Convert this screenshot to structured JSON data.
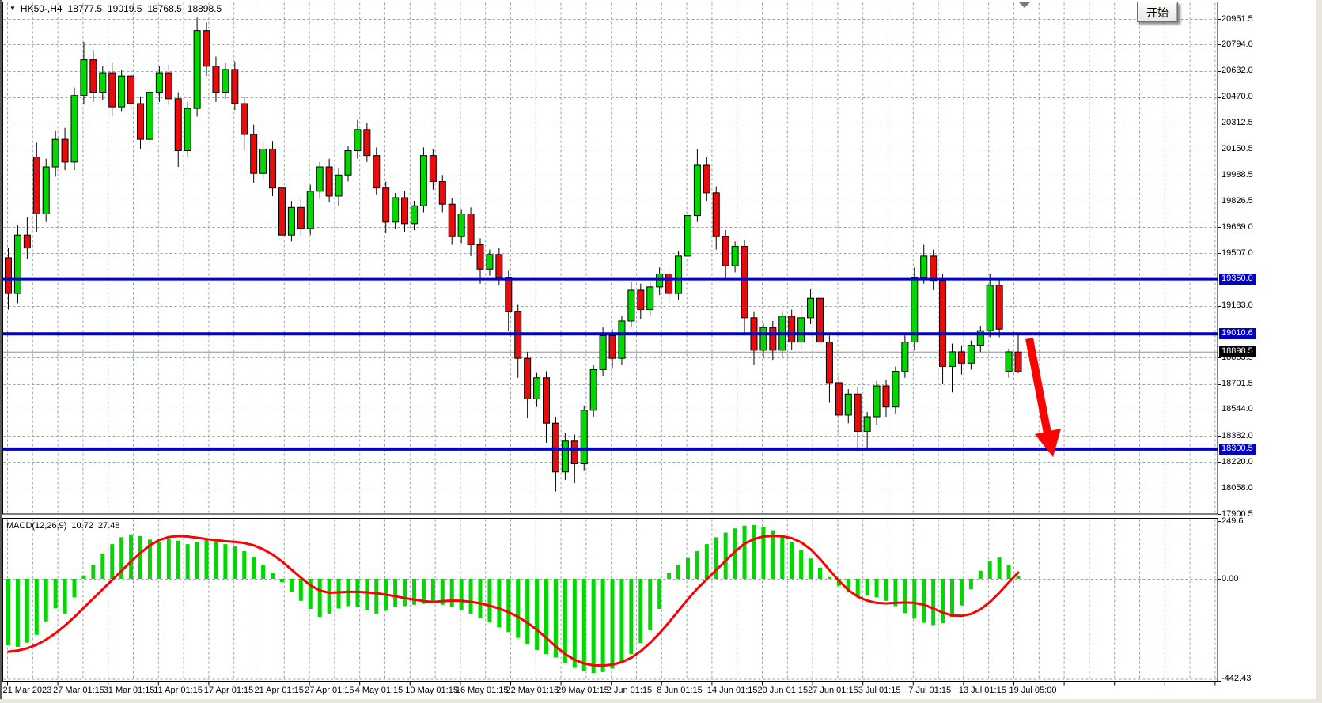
{
  "window": {
    "symbol_period": "HK50-,H4",
    "ohlc": {
      "open": "18777.5",
      "high": "19019.5",
      "low": "18768.5",
      "close": "18898.5"
    }
  },
  "start_button": {
    "label": "开始"
  },
  "colors": {
    "bull": "#00d800",
    "bear": "#e80c0c",
    "wick": "#000000",
    "grid": "#93a1b1",
    "hline": "#0000c8",
    "hline_badge": "#0000c0",
    "signal": "#fe0000",
    "histogram": "#00d800",
    "arrow": "#fb0203",
    "current_line": "#909090",
    "current_badge": "#000000",
    "marker": "#6b7b8d",
    "border": "#000000"
  },
  "price_axis": {
    "labels": [
      "20951.5",
      "20794.0",
      "20632.0",
      "20470.0",
      "20312.5",
      "20150.5",
      "19988.5",
      "19826.5",
      "19669.0",
      "19507.0",
      "19183.0",
      "18863.5",
      "18701.5",
      "18544.0",
      "18382.0",
      "18220.0",
      "18058.0",
      "17900.5"
    ]
  },
  "macd_axis": {
    "top": "249.6",
    "zero": "0.00",
    "bottom": "-442.43"
  },
  "x_axis": {
    "labels": [
      "21 Mar 2023",
      "27 Mar 01:15",
      "31 Mar 01:15",
      "11 Apr 01:15",
      "17 Apr 01:15",
      "21 Apr 01:15",
      "27 Apr 01:15",
      "4 May 01:15",
      "10 May 01:15",
      "16 May 01:15",
      "22 May 01:15",
      "29 May 01:15",
      "2 Jun 01:15",
      "8 Jun 01:15",
      "14 Jun 01:15",
      "20 Jun 01:15",
      "27 Jun 01:15",
      "3 Jul 01:15",
      "7 Jul 01:15",
      "13 Jul 01:15",
      "19 Jul 05:00"
    ]
  },
  "chart_data": [
    {
      "type": "candlestick",
      "title": "HK50-,H4",
      "ylim": [
        17900.5,
        20951.5
      ],
      "grid": true,
      "hlines": [
        {
          "price": 19350.0,
          "label": "19350.0"
        },
        {
          "price": 19010.6,
          "label": "19010.6"
        },
        {
          "price": 18300.5,
          "label": "18300.5"
        }
      ],
      "current_price": {
        "price": 18898.5,
        "label": "18898.5"
      },
      "last_bar_ohlc": [
        18777.5,
        19019.5,
        18768.5,
        18898.5
      ],
      "candles": [
        [
          19480,
          19540,
          19160,
          19260
        ],
        [
          19260,
          19680,
          19200,
          19620
        ],
        [
          19620,
          19730,
          19470,
          19540
        ],
        [
          20100,
          20190,
          19640,
          19750
        ],
        [
          19750,
          20090,
          19700,
          20040
        ],
        [
          20040,
          20260,
          19980,
          20210
        ],
        [
          20210,
          20280,
          20020,
          20070
        ],
        [
          20070,
          20530,
          20020,
          20480
        ],
        [
          20480,
          20810,
          20430,
          20700
        ],
        [
          20700,
          20760,
          20440,
          20500
        ],
        [
          20500,
          20660,
          20450,
          20620
        ],
        [
          20620,
          20680,
          20350,
          20410
        ],
        [
          20410,
          20640,
          20380,
          20600
        ],
        [
          20600,
          20650,
          20380,
          20430
        ],
        [
          20430,
          20470,
          20150,
          20210
        ],
        [
          20210,
          20540,
          20180,
          20500
        ],
        [
          20500,
          20660,
          20440,
          20620
        ],
        [
          20620,
          20670,
          20420,
          20460
        ],
        [
          20460,
          20500,
          20040,
          20140
        ],
        [
          20140,
          20440,
          20100,
          20400
        ],
        [
          20400,
          20960,
          20350,
          20880
        ],
        [
          20880,
          20930,
          20600,
          20660
        ],
        [
          20660,
          20720,
          20440,
          20500
        ],
        [
          20500,
          20680,
          20460,
          20640
        ],
        [
          20640,
          20690,
          20390,
          20430
        ],
        [
          20430,
          20470,
          20140,
          20240
        ],
        [
          20240,
          20300,
          19940,
          20000
        ],
        [
          20000,
          20190,
          19960,
          20150
        ],
        [
          20150,
          20200,
          19860,
          19910
        ],
        [
          19910,
          19950,
          19550,
          19620
        ],
        [
          19620,
          19830,
          19580,
          19790
        ],
        [
          19790,
          19840,
          19610,
          19660
        ],
        [
          19660,
          19930,
          19620,
          19890
        ],
        [
          19890,
          20070,
          19850,
          20040
        ],
        [
          20040,
          20090,
          19820,
          19860
        ],
        [
          19860,
          20030,
          19800,
          19990
        ],
        [
          19990,
          20170,
          19950,
          20140
        ],
        [
          20140,
          20330,
          20090,
          20270
        ],
        [
          20270,
          20310,
          20070,
          20110
        ],
        [
          20110,
          20160,
          19870,
          19910
        ],
        [
          19910,
          19950,
          19630,
          19700
        ],
        [
          19700,
          19880,
          19660,
          19850
        ],
        [
          19850,
          19890,
          19640,
          19690
        ],
        [
          19690,
          19830,
          19650,
          19800
        ],
        [
          19800,
          20160,
          19760,
          20110
        ],
        [
          20110,
          20150,
          19900,
          19950
        ],
        [
          19950,
          19990,
          19760,
          19810
        ],
        [
          19810,
          19850,
          19560,
          19610
        ],
        [
          19610,
          19780,
          19570,
          19750
        ],
        [
          19750,
          19790,
          19490,
          19560
        ],
        [
          19560,
          19600,
          19320,
          19410
        ],
        [
          19410,
          19530,
          19370,
          19500
        ],
        [
          19500,
          19540,
          19310,
          19360
        ],
        [
          19360,
          19400,
          19030,
          19150
        ],
        [
          19150,
          19190,
          18740,
          18860
        ],
        [
          18860,
          18900,
          18490,
          18610
        ],
        [
          18610,
          18770,
          18560,
          18740
        ],
        [
          18740,
          18780,
          18340,
          18460
        ],
        [
          18460,
          18500,
          18040,
          18160
        ],
        [
          18160,
          18400,
          18110,
          18350
        ],
        [
          18350,
          18390,
          18090,
          18210
        ],
        [
          18210,
          18570,
          18170,
          18540
        ],
        [
          18540,
          18820,
          18500,
          18790
        ],
        [
          18790,
          19050,
          18750,
          19000
        ],
        [
          19000,
          19040,
          18800,
          18860
        ],
        [
          18860,
          19120,
          18820,
          19090
        ],
        [
          19090,
          19330,
          19050,
          19280
        ],
        [
          19280,
          19320,
          19100,
          19160
        ],
        [
          19160,
          19330,
          19120,
          19300
        ],
        [
          19300,
          19420,
          19250,
          19380
        ],
        [
          19380,
          19410,
          19200,
          19260
        ],
        [
          19260,
          19520,
          19220,
          19490
        ],
        [
          19490,
          19780,
          19450,
          19740
        ],
        [
          19740,
          20150,
          19700,
          20050
        ],
        [
          20050,
          20100,
          19830,
          19880
        ],
        [
          19880,
          19920,
          19530,
          19610
        ],
        [
          19610,
          19650,
          19340,
          19430
        ],
        [
          19430,
          19580,
          19390,
          19550
        ],
        [
          19550,
          19590,
          19010,
          19110
        ],
        [
          19110,
          19150,
          18820,
          18910
        ],
        [
          18910,
          19080,
          18860,
          19050
        ],
        [
          19050,
          19090,
          18850,
          18910
        ],
        [
          18910,
          19150,
          18870,
          19120
        ],
        [
          19120,
          19160,
          18910,
          18960
        ],
        [
          18960,
          19190,
          18920,
          19110
        ],
        [
          19110,
          19290,
          19070,
          19230
        ],
        [
          19230,
          19270,
          18910,
          18960
        ],
        [
          18960,
          19000,
          18590,
          18710
        ],
        [
          18710,
          18750,
          18390,
          18510
        ],
        [
          18510,
          18670,
          18460,
          18640
        ],
        [
          18640,
          18680,
          18290,
          18410
        ],
        [
          18410,
          18530,
          18310,
          18500
        ],
        [
          18500,
          18720,
          18450,
          18690
        ],
        [
          18690,
          18730,
          18500,
          18560
        ],
        [
          18560,
          18810,
          18520,
          18780
        ],
        [
          18780,
          19000,
          18740,
          18960
        ],
        [
          18960,
          19420,
          18910,
          19360
        ],
        [
          19360,
          19560,
          19320,
          19490
        ],
        [
          19490,
          19530,
          19280,
          19340
        ],
        [
          19340,
          19380,
          18700,
          18810
        ],
        [
          18810,
          18950,
          18650,
          18900
        ],
        [
          18900,
          18940,
          18760,
          18830
        ],
        [
          18830,
          18970,
          18790,
          18940
        ],
        [
          18940,
          19060,
          18900,
          19030
        ],
        [
          19030,
          19380,
          18990,
          19310
        ],
        [
          19310,
          19350,
          18990,
          19040
        ],
        [
          18780,
          18920,
          18740,
          18900
        ],
        [
          18777.5,
          19019.5,
          18768.5,
          18898.5,
          "r"
        ]
      ]
    },
    {
      "type": "macd",
      "name": "MACD(12,26,9)",
      "values": [
        "10.72",
        "27.48"
      ],
      "ylim": [
        -442.43,
        249.6
      ],
      "histogram": [
        -288,
        -294,
        -276,
        -242,
        -184,
        -127,
        -150,
        -80,
        15,
        60,
        110,
        150,
        180,
        192,
        185,
        170,
        160,
        172,
        165,
        150,
        158,
        170,
        162,
        150,
        140,
        120,
        95,
        60,
        25,
        -15,
        -55,
        -95,
        -130,
        -165,
        -150,
        -128,
        -118,
        -122,
        -135,
        -150,
        -138,
        -122,
        -118,
        -112,
        -108,
        -105,
        -112,
        -122,
        -135,
        -150,
        -168,
        -188,
        -210,
        -230,
        -255,
        -282,
        -308,
        -325,
        -340,
        -365,
        -385,
        -398,
        -407,
        -403,
        -388,
        -362,
        -325,
        -278,
        -222,
        -130,
        25,
        60,
        90,
        120,
        150,
        180,
        200,
        218,
        230,
        233,
        225,
        210,
        188,
        160,
        126,
        88,
        48,
        8,
        -30,
        -58,
        -75,
        -72,
        -80,
        -95,
        -118,
        -148,
        -172,
        -190,
        -200,
        -192,
        -165,
        -115,
        -45,
        35,
        75,
        92,
        60,
        10.72
      ],
      "signal": [
        -315,
        -310,
        -300,
        -285,
        -263,
        -235,
        -202,
        -165,
        -125,
        -85,
        -45,
        -5,
        35,
        75,
        112,
        145,
        168,
        181,
        185,
        183,
        178,
        172,
        167,
        163,
        160,
        155,
        145,
        128,
        105,
        75,
        40,
        5,
        -28,
        -50,
        -60,
        -58,
        -56,
        -56,
        -58,
        -62,
        -68,
        -75,
        -83,
        -90,
        -96,
        -100,
        -96,
        -94,
        -95,
        -99,
        -106,
        -116,
        -128,
        -144,
        -164,
        -190,
        -220,
        -255,
        -293,
        -325,
        -350,
        -366,
        -374,
        -375,
        -371,
        -360,
        -341,
        -313,
        -277,
        -235,
        -188,
        -138,
        -88,
        -42,
        -2,
        38,
        78,
        118,
        152,
        172,
        183,
        186,
        184,
        176,
        158,
        128,
        86,
        38,
        -8,
        -48,
        -77,
        -94,
        -104,
        -106,
        -104,
        -102,
        -104,
        -112,
        -128,
        -146,
        -158,
        -160,
        -152,
        -132,
        -100,
        -60,
        -15,
        27.48
      ]
    }
  ],
  "annotations": {
    "arrow": "thick red arrow pointing down-right from 19010.6 line toward 18300.5 line",
    "last_bar_marker": "small gray down triangle at top of chart above latest bar"
  }
}
